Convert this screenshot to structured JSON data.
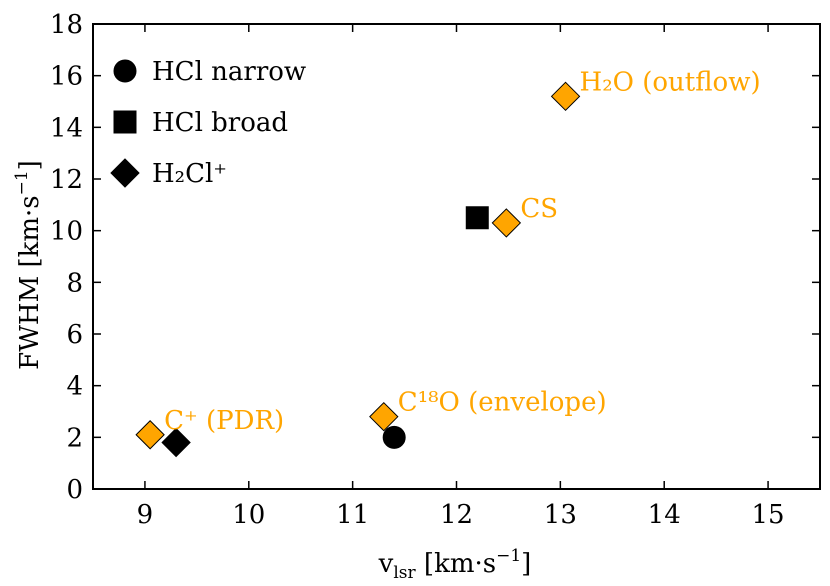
{
  "chart_data": {
    "type": "scatter",
    "xlabel": "v",
    "xlabel_sub": "lsr",
    "xlabel_unit_open": " [km·s",
    "xlabel_unit_exp": "−1",
    "xlabel_unit_close": "]",
    "ylabel": "FWHM [km·s",
    "ylabel_exp": "−1",
    "ylabel_close": "]",
    "xlim": [
      8.5,
      15.5
    ],
    "ylim": [
      0,
      18
    ],
    "xticks": [
      9,
      10,
      11,
      12,
      13,
      14,
      15
    ],
    "yticks": [
      0,
      2,
      4,
      6,
      8,
      10,
      12,
      14,
      16,
      18
    ],
    "grid": false,
    "legend_position": "top-left",
    "legend": [
      {
        "marker": "circle",
        "label": "HCl narrow"
      },
      {
        "marker": "square",
        "label": "HCl broad"
      },
      {
        "marker": "diamond",
        "label": "H₂Cl⁺"
      }
    ],
    "series": [
      {
        "name": "HCl narrow",
        "marker": "circle",
        "color": "#000000",
        "points": [
          {
            "x": 11.4,
            "y": 2.0
          }
        ]
      },
      {
        "name": "HCl broad",
        "marker": "square",
        "color": "#000000",
        "points": [
          {
            "x": 12.2,
            "y": 10.5
          }
        ]
      },
      {
        "name": "H₂Cl⁺",
        "marker": "diamond",
        "color": "#000000",
        "points": [
          {
            "x": 9.3,
            "y": 1.8
          }
        ]
      }
    ],
    "reference_points": {
      "marker": "diamond",
      "color": "#FFA500",
      "points": [
        {
          "x": 9.05,
          "y": 2.1,
          "label": "C⁺ (PDR)"
        },
        {
          "x": 11.3,
          "y": 2.8,
          "label": "C¹⁸O (envelope)"
        },
        {
          "x": 12.48,
          "y": 10.3,
          "label": "CS"
        },
        {
          "x": 13.05,
          "y": 15.2,
          "label": "H₂O (outflow)"
        }
      ]
    }
  }
}
